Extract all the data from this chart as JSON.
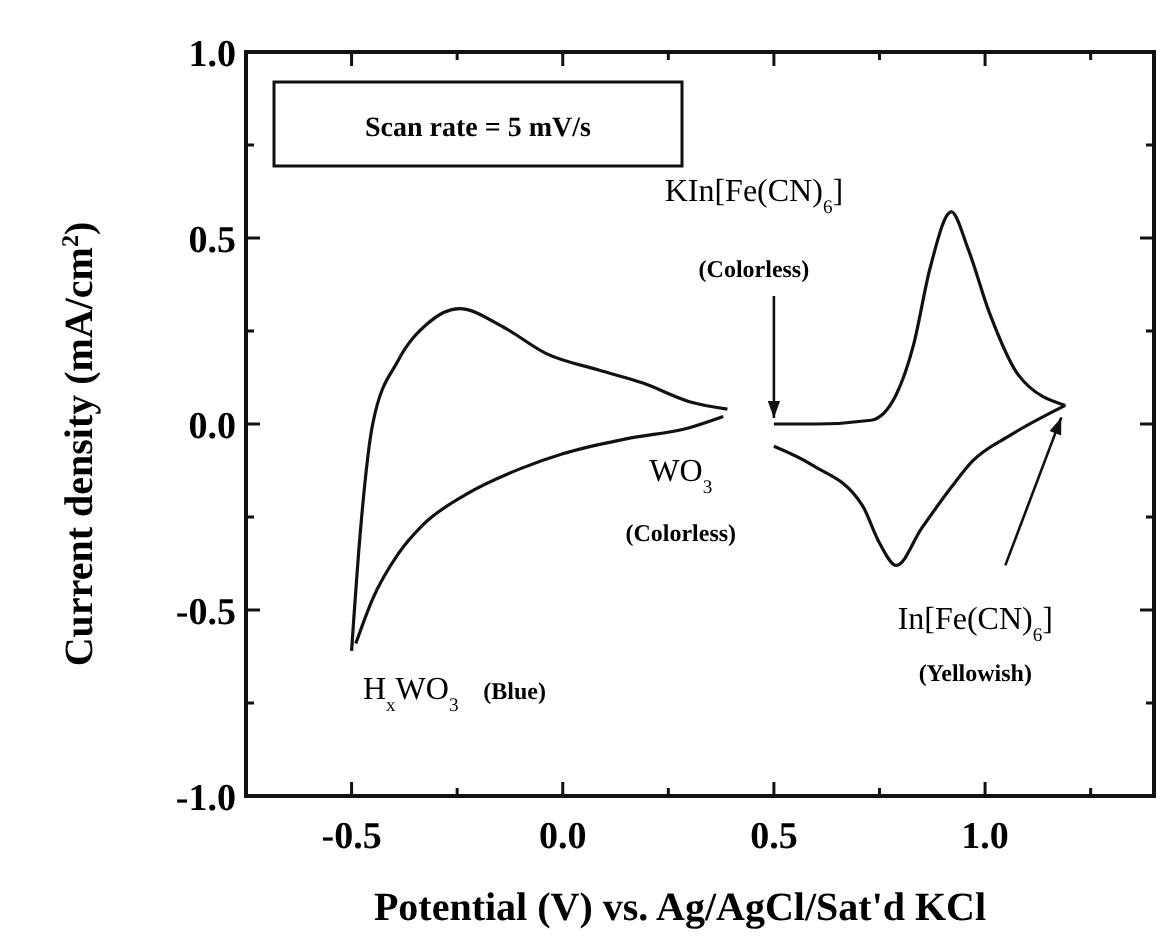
{
  "chart_data": {
    "type": "line",
    "xlabel": "Potential (V) vs. Ag/AgCl/Sat'd KCl",
    "ylabel": "Current density (mA/cm$^{2}$)",
    "xlim": [
      -0.75,
      1.4
    ],
    "xticks": [
      {
        "value": -0.75,
        "label": null
      },
      -0.5,
      {
        "value": -0.25,
        "label": null
      },
      {
        "value": 0,
        "label": "0.0"
      },
      {
        "value": 0.25,
        "label": null
      },
      0.5,
      {
        "value": 0.75,
        "label": null
      },
      {
        "value": 1,
        "label": "1.0"
      },
      {
        "value": 1.25,
        "label": null
      }
    ],
    "ylim": [
      -1.0,
      1.0
    ],
    "yticks": [
      {
        "value": -1.0,
        "label": "-1.0"
      },
      {
        "value": -0.75,
        "label": null
      },
      -0.5,
      {
        "value": -0.25,
        "label": null
      },
      {
        "value": 0,
        "label": "0.0"
      },
      {
        "value": 0.25,
        "label": null
      },
      0.5,
      {
        "value": 0.75,
        "label": null
      },
      {
        "value": 1.0,
        "label": "1.0"
      }
    ],
    "grid": false,
    "marker": "none",
    "line_style": "solid",
    "series": [
      {
        "color": "#111111",
        "x": [
          -0.5,
          -0.48,
          -0.45,
          -0.39,
          -0.32,
          -0.245,
          -0.14,
          -0.04,
          0.085,
          0.19,
          0.3,
          0.39
        ],
        "values": [
          -0.61,
          -0.3,
          0.0,
          0.17,
          0.27,
          0.31,
          0.26,
          0.19,
          0.145,
          0.11,
          0.06,
          0.04
        ]
      },
      {
        "color": "#111111",
        "x": [
          -0.49,
          -0.45,
          -0.39,
          -0.33,
          -0.23,
          -0.1,
          0.0,
          0.15,
          0.3,
          0.38
        ],
        "values": [
          -0.59,
          -0.47,
          -0.35,
          -0.27,
          -0.19,
          -0.12,
          -0.08,
          -0.04,
          -0.01,
          0.02
        ]
      },
      {
        "color": "#111111",
        "x": [
          0.5,
          0.6,
          0.73,
          0.79,
          0.83,
          0.87,
          0.92,
          0.96,
          1.01,
          1.08,
          1.19
        ],
        "values": [
          0.0,
          0.0,
          0.01,
          0.08,
          0.21,
          0.42,
          0.57,
          0.47,
          0.3,
          0.13,
          0.05
        ]
      },
      {
        "color": "#111111",
        "x": [
          0.5,
          0.59,
          0.71,
          0.75,
          0.79,
          0.85,
          0.92,
          0.97,
          1.06,
          1.19
        ],
        "values": [
          -0.06,
          -0.11,
          -0.22,
          -0.32,
          -0.38,
          -0.28,
          -0.17,
          -0.1,
          -0.03,
          0.05
        ]
      }
    ],
    "annotations": [
      "Scan rate = 5 mV/s",
      "KIn[Fe(CN)$_{6}$]",
      {
        "text": "(Colorless)",
        "x": 0.5,
        "y": 0.0
      },
      "WO$_{3}$",
      "(Colorless)",
      "H$_{x}$WO$_{3}$",
      "(Blue)",
      {
        "text": "In[Fe(CN)$_{6}$]",
        "x": 1.19,
        "y": 0.05
      },
      "(Yellowish)"
    ]
  }
}
